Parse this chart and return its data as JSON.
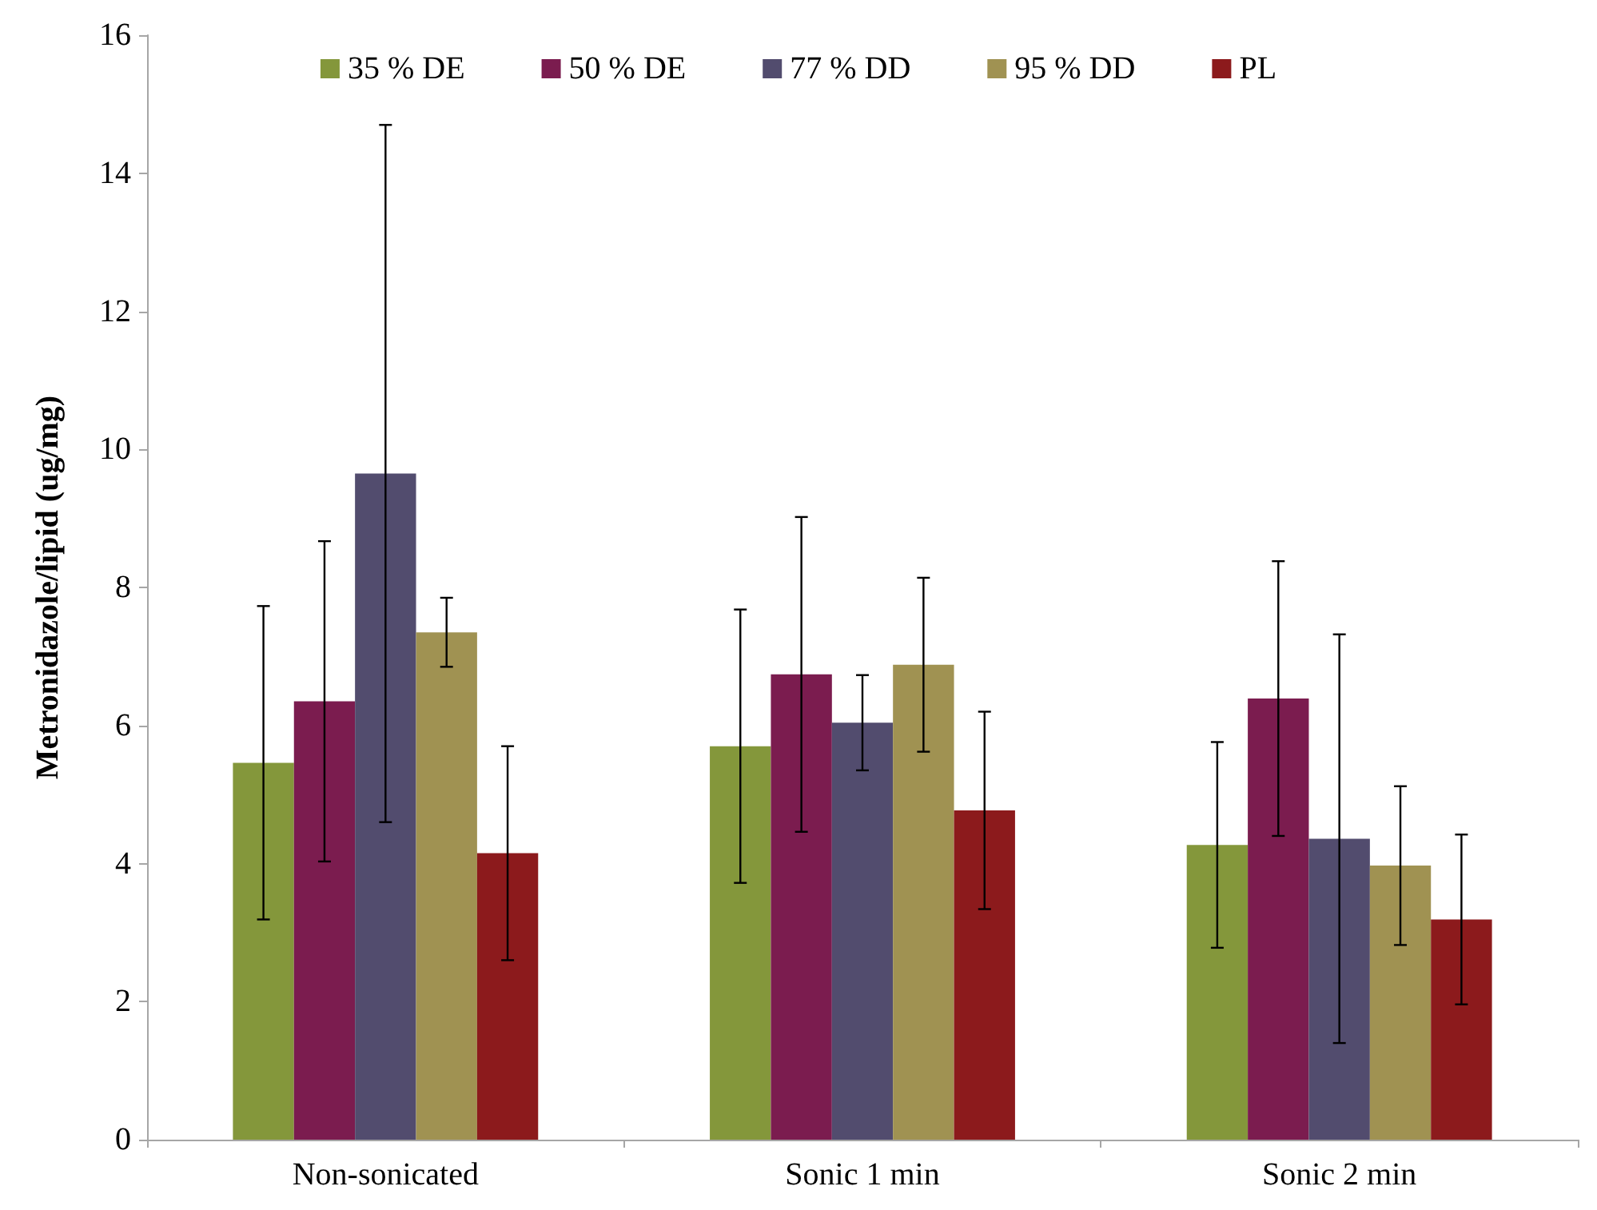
{
  "chart_data": {
    "type": "bar",
    "ylabel": "Metronidazole/lipid (ug/mg)",
    "categories": [
      "Non-sonicated",
      "Sonic 1 min",
      "Sonic 2 min"
    ],
    "series": [
      {
        "name": "35 % DE",
        "color": "#84973b",
        "values": [
          5.46,
          5.7,
          4.27
        ],
        "errors": [
          2.27,
          1.98,
          1.49
        ]
      },
      {
        "name": "50 % DE",
        "color": "#7b1c4f",
        "values": [
          6.35,
          6.74,
          6.39
        ],
        "errors": [
          2.32,
          2.28,
          1.99
        ]
      },
      {
        "name": "77 % DD",
        "color": "#524c6e",
        "values": [
          9.65,
          6.04,
          4.36
        ],
        "errors": [
          5.05,
          0.69,
          2.96
        ]
      },
      {
        "name": "95 % DD",
        "color": "#a09252",
        "values": [
          7.35,
          6.88,
          3.97
        ],
        "errors": [
          0.5,
          1.26,
          1.15
        ]
      },
      {
        "name": "PL",
        "color": "#8c1a1c",
        "values": [
          4.15,
          4.77,
          3.19
        ],
        "errors": [
          1.55,
          1.43,
          1.23
        ]
      }
    ],
    "ylim": [
      0,
      16
    ],
    "yticks": [
      0,
      2,
      4,
      6,
      8,
      10,
      12,
      14,
      16
    ],
    "grid": false,
    "legend": "top"
  }
}
